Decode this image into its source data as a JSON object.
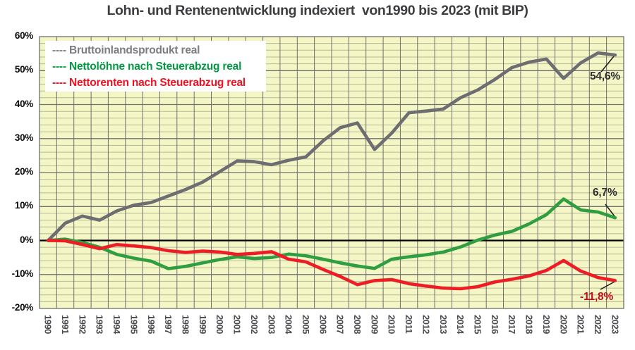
{
  "title": "Lohn- und Rentenentwicklung indexiert  von1990 bis 2023 (mit BIP)",
  "legend": {
    "items": [
      {
        "dash": "----",
        "label": "Bruttoinlandsprodukt real",
        "color": "#7b7b80"
      },
      {
        "dash": "----",
        "label": "Nettolöhne nach Steuerabzug real",
        "color": "#009a40"
      },
      {
        "dash": "----",
        "label": "Nettorenten nach Steuerabzug real",
        "color": "#ee1122"
      }
    ]
  },
  "y_axis": {
    "ticks": [
      {
        "label": "60%",
        "value": 60
      },
      {
        "label": "50%",
        "value": 50
      },
      {
        "label": "40%",
        "value": 40
      },
      {
        "label": "30%",
        "value": 30
      },
      {
        "label": "20%",
        "value": 20
      },
      {
        "label": "10%",
        "value": 10
      },
      {
        "label": "0%",
        "value": 0
      },
      {
        "label": "-10%",
        "value": -10
      },
      {
        "label": "-20%",
        "value": -20
      }
    ]
  },
  "colors": {
    "plot_bg": "#f4f7c5",
    "grid_minor": "#b6b996",
    "grid_major": "#6f6f6f",
    "zero_line": "#000000",
    "leader_line": "#1a1a1a",
    "x_label": "#4b4b50"
  },
  "chart_data": {
    "type": "line",
    "title": "Lohn- und Rentenentwicklung indexiert von1990 bis 2023 (mit BIP)",
    "x": [
      1990,
      1991,
      1992,
      1993,
      1994,
      1995,
      1996,
      1997,
      1998,
      1999,
      2000,
      2001,
      2002,
      2003,
      2004,
      2005,
      2006,
      2007,
      2008,
      2009,
      2010,
      2011,
      2012,
      2013,
      2014,
      2015,
      2016,
      2017,
      2018,
      2019,
      2020,
      2021,
      2022,
      2023
    ],
    "ylim": [
      -20,
      60
    ],
    "grid": {
      "minor_step": 2,
      "major_step": 10
    },
    "legend_position": "top-left",
    "series": [
      {
        "name": "Bruttoinlandsprodukt real",
        "color": "#6d6d72",
        "values": [
          0,
          5.1,
          7.2,
          6.0,
          8.7,
          10.4,
          11.2,
          13.1,
          15.0,
          17.2,
          20.3,
          23.4,
          23.2,
          22.3,
          23.6,
          24.6,
          29.3,
          33.2,
          34.6,
          26.8,
          31.6,
          37.6,
          38.1,
          38.7,
          42.0,
          44.3,
          47.4,
          50.9,
          52.5,
          53.4,
          47.7,
          52.3,
          55.2,
          54.6
        ]
      },
      {
        "name": "Nettolöhne nach Steuerabzug real",
        "color": "#2f9e41",
        "values": [
          0,
          0.4,
          -0.6,
          -2.0,
          -4.1,
          -5.2,
          -6.1,
          -8.3,
          -7.6,
          -6.6,
          -5.6,
          -4.8,
          -5.3,
          -5.0,
          -4.0,
          -4.5,
          -5.5,
          -6.6,
          -7.5,
          -8.2,
          -5.5,
          -4.8,
          -4.2,
          -3.4,
          -1.9,
          0.1,
          1.6,
          2.7,
          4.9,
          7.6,
          12.2,
          9.0,
          8.4,
          6.7
        ]
      },
      {
        "name": "Nettorenten nach Steuerabzug real",
        "color": "#ee1c25",
        "values": [
          0,
          -0.1,
          -1.2,
          -2.4,
          -1.2,
          -1.6,
          -2.1,
          -3.0,
          -3.5,
          -3.1,
          -3.4,
          -4.1,
          -3.8,
          -3.3,
          -5.5,
          -6.3,
          -8.5,
          -10.6,
          -13.0,
          -11.8,
          -11.5,
          -12.7,
          -13.4,
          -14.0,
          -14.2,
          -13.6,
          -12.2,
          -11.4,
          -10.4,
          -8.8,
          -5.9,
          -9.0,
          -10.9,
          -11.8
        ]
      }
    ],
    "annotations": [
      {
        "text": "54,6%",
        "series": "Bruttoinlandsprodukt real",
        "color": "#2f2f33"
      },
      {
        "text": "6,7%",
        "series": "Nettolöhne nach Steuerabzug real",
        "color": "#2f2f33"
      },
      {
        "text": "-11,8%",
        "series": "Nettorenten nach Steuerabzug real",
        "color": "#c00d1e"
      }
    ]
  }
}
